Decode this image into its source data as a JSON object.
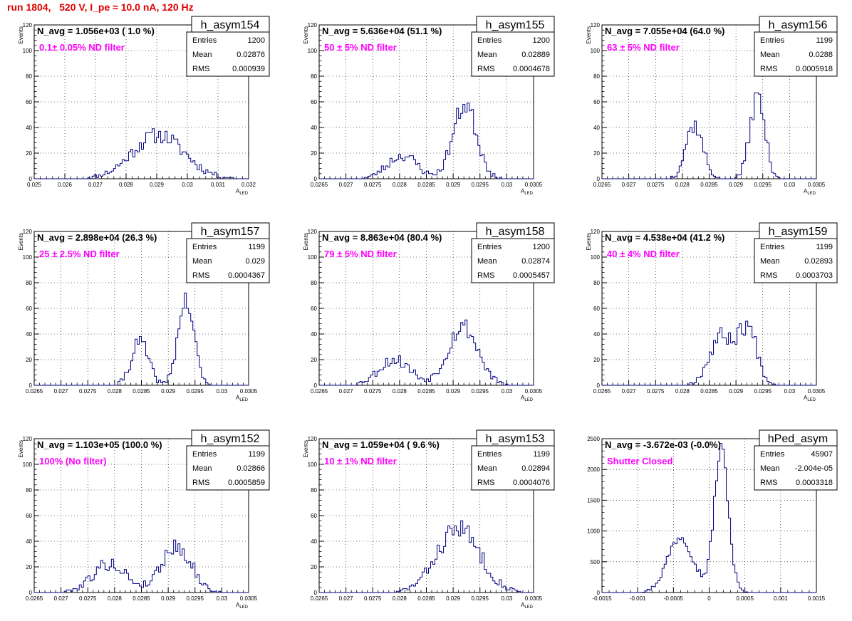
{
  "header": {
    "run_title": "run 1804,   520 V, I_pe ≈ 10.0 nA, 120 Hz"
  },
  "colors": {
    "title": "#e00000",
    "annotation": "#ff00ff",
    "histogram": "#000080"
  },
  "stat_labels": {
    "entries": "Entries",
    "mean": "Mean",
    "rms": "RMS"
  },
  "chart_data": [
    {
      "type": "histogram",
      "name": "h_asym154",
      "navg": "N_avg = 1.056e+03 ( 1.0 %)",
      "filter": "0.1± 0.05% ND filter",
      "stats": {
        "entries": "1200",
        "mean": "0.02876",
        "rms": "0.000939"
      },
      "xlabel": "A_LED",
      "ylabel": "Events",
      "xlim": [
        0.025,
        0.032
      ],
      "ylim": [
        0,
        120
      ],
      "xticks": [
        "0.025",
        "0.026",
        "0.027",
        "0.028",
        "0.029",
        "0.03",
        "0.031",
        "0.032"
      ],
      "yticks": [
        "0",
        "20",
        "40",
        "60",
        "80",
        "100",
        "120"
      ],
      "grid": true,
      "peaks": [
        {
          "center": 0.02905,
          "sigma": 0.00085,
          "amp": 34
        }
      ],
      "noise_seed": 11
    },
    {
      "type": "histogram",
      "name": "h_asym155",
      "navg": "N_avg = 5.636e+04 (51.1 %)",
      "filter": "50 ± 5% ND filter",
      "stats": {
        "entries": "1200",
        "mean": "0.02889",
        "rms": "0.0004678"
      },
      "xlabel": "A_LED",
      "ylabel": "Events",
      "xlim": [
        0.0265,
        0.0305
      ],
      "ylim": [
        0,
        120
      ],
      "xticks": [
        "0.0265",
        "0.027",
        "0.0275",
        "0.028",
        "0.0285",
        "0.029",
        "0.0295",
        "0.03",
        "0.0305"
      ],
      "yticks": [
        "0",
        "20",
        "40",
        "60",
        "80",
        "100",
        "120"
      ],
      "grid": true,
      "peaks": [
        {
          "center": 0.02805,
          "sigma": 0.00028,
          "amp": 18
        },
        {
          "center": 0.02922,
          "sigma": 0.00022,
          "amp": 58
        }
      ],
      "noise_seed": 23
    },
    {
      "type": "histogram",
      "name": "h_asym156",
      "navg": "N_avg = 7.055e+04 (64.0 %)",
      "filter": "63 ± 5% ND filter",
      "stats": {
        "entries": "1199",
        "mean": "0.0288",
        "rms": "0.0005918"
      },
      "xlabel": "A_LED",
      "ylabel": "Events",
      "xlim": [
        0.0265,
        0.0305
      ],
      "ylim": [
        0,
        120
      ],
      "xticks": [
        "0.0265",
        "0.027",
        "0.0275",
        "0.028",
        "0.0285",
        "0.029",
        "0.0295",
        "0.03",
        "0.0305"
      ],
      "yticks": [
        "0",
        "20",
        "40",
        "60",
        "80",
        "100",
        "120"
      ],
      "grid": true,
      "peaks": [
        {
          "center": 0.02822,
          "sigma": 0.00016,
          "amp": 42
        },
        {
          "center": 0.0294,
          "sigma": 0.00014,
          "amp": 64
        }
      ],
      "noise_seed": 37
    },
    {
      "type": "histogram",
      "name": "h_asym157",
      "navg": "N_avg = 2.898e+04 (26.3 %)",
      "filter": "25 ± 2.5% ND filter",
      "stats": {
        "entries": "1199",
        "mean": "0.029",
        "rms": "0.0004367"
      },
      "xlabel": "A_LED",
      "ylabel": "Events",
      "xlim": [
        0.0265,
        0.0305
      ],
      "ylim": [
        0,
        120
      ],
      "xticks": [
        "0.0265",
        "0.027",
        "0.0275",
        "0.028",
        "0.0285",
        "0.029",
        "0.0295",
        "0.03",
        "0.0305"
      ],
      "yticks": [
        "0",
        "20",
        "40",
        "60",
        "80",
        "100",
        "120"
      ],
      "grid": true,
      "peaks": [
        {
          "center": 0.02847,
          "sigma": 0.00016,
          "amp": 34
        },
        {
          "center": 0.02933,
          "sigma": 0.00015,
          "amp": 66
        }
      ],
      "noise_seed": 41
    },
    {
      "type": "histogram",
      "name": "h_asym158",
      "navg": "N_avg = 8.863e+04 (80.4 %)",
      "filter": "79 ± 5% ND filter",
      "stats": {
        "entries": "1200",
        "mean": "0.02874",
        "rms": "0.0005457"
      },
      "xlabel": "A_LED",
      "ylabel": "Events",
      "xlim": [
        0.0265,
        0.0305
      ],
      "ylim": [
        0,
        120
      ],
      "xticks": [
        "0.0265",
        "0.027",
        "0.0275",
        "0.028",
        "0.0285",
        "0.029",
        "0.0295",
        "0.03",
        "0.0305"
      ],
      "yticks": [
        "0",
        "20",
        "40",
        "60",
        "80",
        "100",
        "120"
      ],
      "grid": true,
      "peaks": [
        {
          "center": 0.0279,
          "sigma": 0.0003,
          "amp": 20
        },
        {
          "center": 0.02918,
          "sigma": 0.00028,
          "amp": 46
        }
      ],
      "noise_seed": 53
    },
    {
      "type": "histogram",
      "name": "h_asym159",
      "navg": "N_avg = 4.538e+04 (41.2 %)",
      "filter": "40 ± 4% ND filter",
      "stats": {
        "entries": "1199",
        "mean": "0.02893",
        "rms": "0.0003703"
      },
      "xlabel": "A_LED",
      "ylabel": "Events",
      "xlim": [
        0.0265,
        0.0305
      ],
      "ylim": [
        0,
        120
      ],
      "xticks": [
        "0.0265",
        "0.027",
        "0.0275",
        "0.028",
        "0.0285",
        "0.029",
        "0.0295",
        "0.03",
        "0.0305"
      ],
      "yticks": [
        "0",
        "20",
        "40",
        "60",
        "80",
        "100",
        "120"
      ],
      "grid": true,
      "peaks": [
        {
          "center": 0.02872,
          "sigma": 0.00022,
          "amp": 38
        },
        {
          "center": 0.02922,
          "sigma": 0.00018,
          "amp": 44
        }
      ],
      "noise_seed": 67
    },
    {
      "type": "histogram",
      "name": "h_asym152",
      "navg": "N_avg = 1.103e+05 (100.0 %)",
      "filter": "100% (No filter)",
      "stats": {
        "entries": "1199",
        "mean": "0.02866",
        "rms": "0.0005859"
      },
      "xlabel": "A_LED",
      "ylabel": "Events",
      "xlim": [
        0.0265,
        0.0305
      ],
      "ylim": [
        0,
        120
      ],
      "xticks": [
        "0.0265",
        "0.027",
        "0.0275",
        "0.028",
        "0.0285",
        "0.029",
        "0.0295",
        "0.03",
        "0.0305"
      ],
      "yticks": [
        "0",
        "20",
        "40",
        "60",
        "80",
        "100",
        "120"
      ],
      "grid": true,
      "peaks": [
        {
          "center": 0.0279,
          "sigma": 0.00032,
          "amp": 22
        },
        {
          "center": 0.02915,
          "sigma": 0.00028,
          "amp": 36
        }
      ],
      "noise_seed": 79
    },
    {
      "type": "histogram",
      "name": "h_asym153",
      "navg": "N_avg = 1.059e+04 ( 9.6 %)",
      "filter": "10 ± 1% ND filter",
      "stats": {
        "entries": "1199",
        "mean": "0.02894",
        "rms": "0.0004076"
      },
      "xlabel": "A_LED",
      "ylabel": "Events",
      "xlim": [
        0.0265,
        0.0305
      ],
      "ylim": [
        0,
        120
      ],
      "xticks": [
        "0.0265",
        "0.027",
        "0.0275",
        "0.028",
        "0.0285",
        "0.029",
        "0.0295",
        "0.03",
        "0.0305"
      ],
      "yticks": [
        "0",
        "20",
        "40",
        "60",
        "80",
        "100",
        "120"
      ],
      "grid": true,
      "peaks": [
        {
          "center": 0.0291,
          "sigma": 0.0004,
          "amp": 50
        }
      ],
      "noise_seed": 83
    },
    {
      "type": "histogram",
      "name": "hPed_asym",
      "navg": "N_avg = -3.672e-03 (-0.0%)",
      "filter": "Shutter Closed",
      "stats": {
        "entries": "45907",
        "mean": "-2.004e-05",
        "rms": "0.0003318"
      },
      "xlabel": "",
      "ylabel": "",
      "xlim": [
        -0.0015,
        0.0015
      ],
      "ylim": [
        0,
        2500
      ],
      "xticks": [
        "-0.0015",
        "-0.001",
        "-0.0005",
        "0",
        "0.0005",
        "0.001",
        "0.0015"
      ],
      "yticks": [
        "0",
        "500",
        "1000",
        "1500",
        "2000",
        "2500"
      ],
      "grid": true,
      "peaks": [
        {
          "center": -0.0004,
          "sigma": 0.00018,
          "amp": 920
        },
        {
          "center": 0.00017,
          "sigma": 0.0001,
          "amp": 2300
        }
      ],
      "noise_seed": 97
    }
  ]
}
